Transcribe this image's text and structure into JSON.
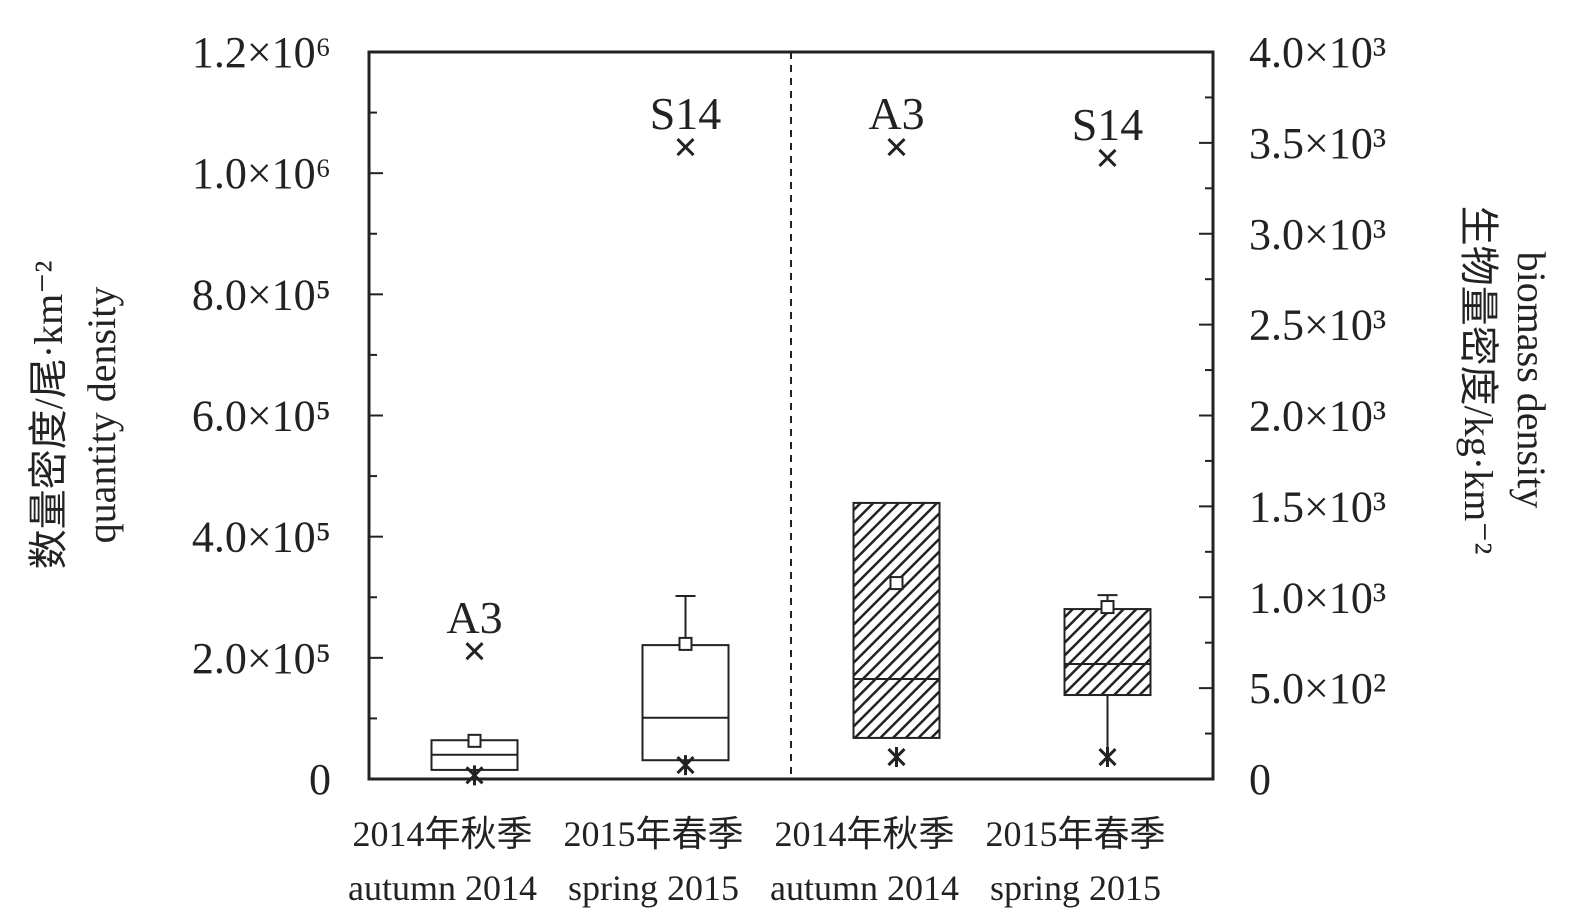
{
  "chart_data": {
    "type": "box",
    "categories": [
      [
        "2014年秋季",
        "autumn 2014"
      ],
      [
        "2015年春季",
        "spring 2015"
      ],
      [
        "2014年秋季",
        "autumn 2014"
      ],
      [
        "2015年春季",
        "spring 2015"
      ]
    ],
    "ylabel": [
      "数量密度/尾·km⁻²",
      "quantity density"
    ],
    "y2label": [
      "生物量密度/kg·km⁻²",
      "biomass density"
    ],
    "ylim": [
      0,
      1200000
    ],
    "yticks": [
      0,
      {
        "value": 200000,
        "label": "2.0×10⁵"
      },
      {
        "value": 400000,
        "label": "4.0×10⁵"
      },
      {
        "value": 600000,
        "label": "6.0×10⁵"
      },
      {
        "value": 800000,
        "label": "8.0×10⁵"
      },
      {
        "value": 1000000,
        "label": "1.0×10⁶"
      },
      {
        "value": 1200000,
        "label": "1.2×10⁶"
      }
    ],
    "yminorticks": [
      100000,
      300000,
      500000,
      700000,
      900000,
      1100000
    ],
    "y2lim": [
      0,
      4000
    ],
    "y2ticks": [
      0,
      {
        "value": 500,
        "label": "5.0×10²"
      },
      {
        "value": 1000,
        "label": "1.0×10³"
      },
      {
        "value": 1500,
        "label": "1.5×10³"
      },
      {
        "value": 2000,
        "label": "2.0×10³"
      },
      {
        "value": 2500,
        "label": "2.5×10³"
      },
      {
        "value": 3000,
        "label": "3.0×10³"
      },
      {
        "value": 3500,
        "label": "3.5×10³"
      },
      {
        "value": 4000,
        "label": "4.0×10³"
      }
    ],
    "y2minorticks": [
      250,
      750,
      1250,
      1750,
      2250,
      2750,
      3250,
      3750
    ],
    "boxes": [
      {
        "axis": "y",
        "hatched": false,
        "q1": 15000,
        "median": 40000,
        "q3": 64000,
        "mean": 63000,
        "whisker_low": null,
        "whisker_high": null,
        "min": 6000,
        "max": 211000,
        "max_label": "A3"
      },
      {
        "axis": "y",
        "hatched": false,
        "q1": 31000,
        "median": 101000,
        "q3": 221000,
        "mean": 223000,
        "whisker_low": null,
        "whisker_high": 302000,
        "min": 23000,
        "max": 1043000,
        "max_label": "S14"
      },
      {
        "axis": "y2",
        "hatched": true,
        "q1": 226,
        "median": 550,
        "q3": 1519,
        "mean": 1078,
        "whisker_low": null,
        "whisker_high": null,
        "min": 121,
        "max": 3477,
        "max_label": "A3"
      },
      {
        "axis": "y2",
        "hatched": true,
        "q1": 462,
        "median": 633,
        "q3": 935,
        "mean": 946,
        "whisker_low": 121,
        "whisker_high": 1012,
        "min": 121,
        "max": 3417,
        "max_label": "S14"
      }
    ]
  }
}
